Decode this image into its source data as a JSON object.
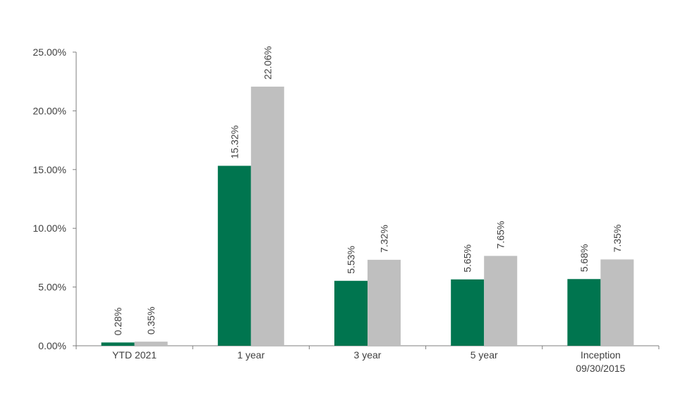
{
  "chart_data": {
    "type": "bar",
    "categories": [
      [
        "YTD 2021"
      ],
      [
        "1 year"
      ],
      [
        "3 year"
      ],
      [
        "5 year"
      ],
      [
        "Inception",
        "09/30/2015"
      ]
    ],
    "series": [
      {
        "color": "#00754f",
        "values": [
          0.28,
          15.32,
          5.53,
          5.65,
          5.68
        ],
        "labels": [
          "0.28%",
          "15.32%",
          "5.53%",
          "5.65%",
          "5.68%"
        ]
      },
      {
        "color": "#bfbfbf",
        "values": [
          0.35,
          22.06,
          7.32,
          7.65,
          7.35
        ],
        "labels": [
          "0.35%",
          "22.06%",
          "7.32%",
          "7.65%",
          "7.35%"
        ]
      }
    ],
    "ylim": [
      0,
      25
    ],
    "yticks": [
      0,
      5,
      10,
      15,
      20,
      25
    ],
    "ytick_labels": [
      "0.00%",
      "5.00%",
      "10.00%",
      "15.00%",
      "20.00%",
      "25.00%"
    ],
    "legend": "none",
    "grid": false,
    "axis_color": "#7f7f7f"
  }
}
